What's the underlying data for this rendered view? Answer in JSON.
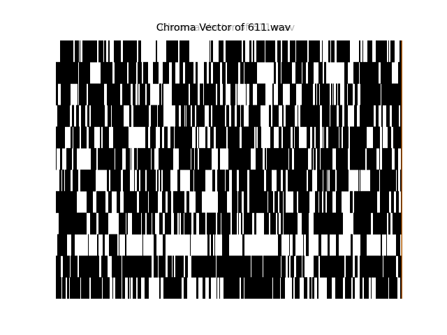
{
  "chart_data": {
    "type": "heatmap",
    "title": "Chroma Vector of 611.wav",
    "ghost_titles": [
      "Chroma Vector of 611.wav",
      "Chroma Vector of 611.wav"
    ],
    "xlabel": "",
    "ylabel": "",
    "rows": 12,
    "colormap": [
      "#000000",
      "#ffffff"
    ],
    "edge_accent": "#b05a00",
    "row_densities": [
      0.55,
      0.6,
      0.58,
      0.62,
      0.58,
      0.6,
      0.62,
      0.55,
      0.6,
      0.22,
      0.8,
      0.55
    ],
    "grid": false
  }
}
